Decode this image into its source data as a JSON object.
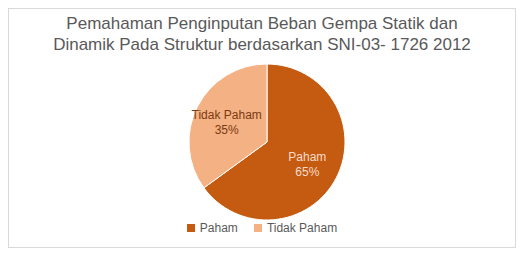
{
  "chart_data": {
    "type": "pie",
    "title": "Pemahaman Penginputan Beban Gempa Statik dan Dinamik Pada Struktur berdasarkan SNI-03- 1726 2012",
    "categories": [
      "Paham",
      "Tidak Paham"
    ],
    "values": [
      65,
      35
    ],
    "value_labels": [
      "65%",
      "35%"
    ],
    "colors": [
      "#c55a11",
      "#f4b183"
    ],
    "data_labels": true,
    "legend": "bottom"
  }
}
